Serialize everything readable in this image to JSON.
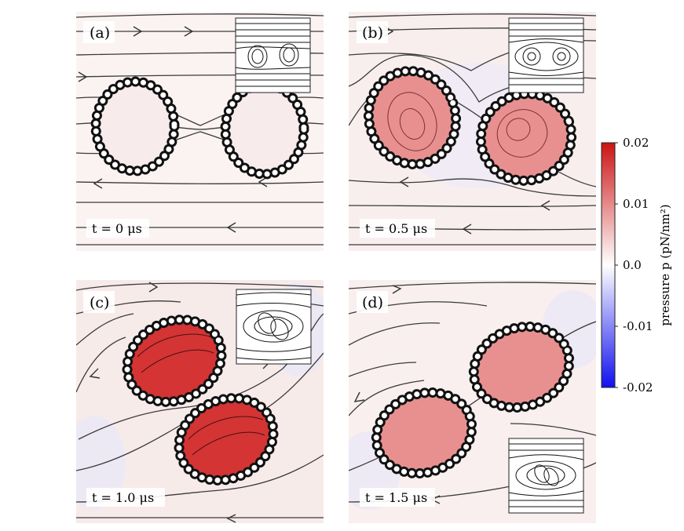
{
  "panels": [
    {
      "label": "(a)",
      "time": "t = 0 μs"
    },
    {
      "label": "(b)",
      "time": "t = 0.5 μs"
    },
    {
      "label": "(c)",
      "time": "t = 1.0 μs"
    },
    {
      "label": "(d)",
      "time": "t = 1.5 μs"
    }
  ],
  "colorbar": {
    "title": "pressure p (pN/nm²)",
    "ticks": [
      "0.02",
      "0.01",
      "0.0",
      "-0.01",
      "-0.02"
    ],
    "range": [
      -0.02,
      0.02
    ],
    "colors": {
      "high": "#cc1414",
      "mid": "#ffffff",
      "low": "#1010ee"
    }
  }
}
